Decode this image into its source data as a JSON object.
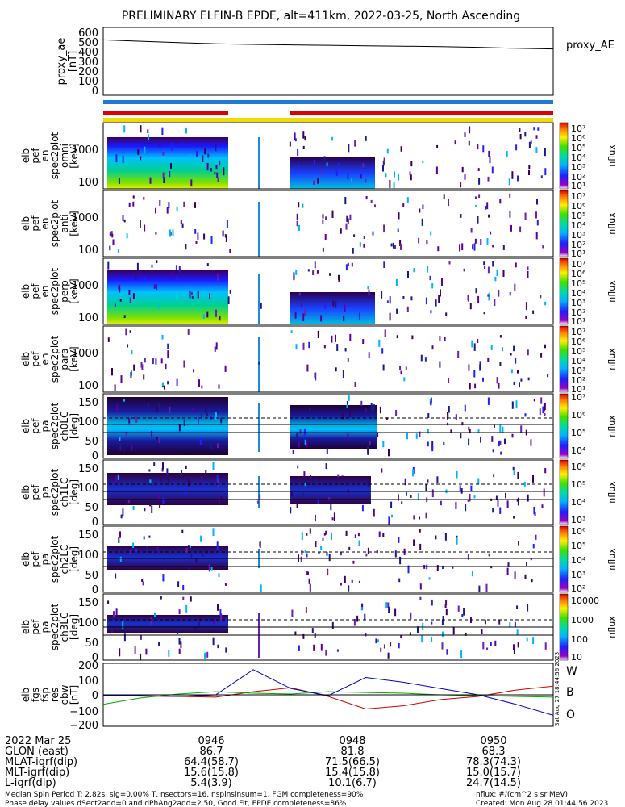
{
  "title": "PRELIMINARY ELFIN-B EPDE, alt=411km, 2022-03-25, North Ascending",
  "proxy_panel": {
    "ylabel_lines": [
      "proxy_ae",
      "[nT]"
    ],
    "ticks": [
      "600",
      "500",
      "400",
      "300",
      "200",
      "100",
      "0"
    ],
    "legend": "proxy_AE"
  },
  "spectral_panels": [
    {
      "ylabel_lines": [
        "elb",
        "pef",
        "en",
        "spec2plot",
        "omni",
        "[keV]"
      ],
      "ticks": [
        "1000",
        "100"
      ],
      "cbar_ticks": [
        "10⁷",
        "10⁶",
        "10⁵",
        "10⁴",
        "10³",
        "10²",
        "10¹"
      ],
      "zlabel": "nflux"
    },
    {
      "ylabel_lines": [
        "elb",
        "pef",
        "en",
        "spec2plot",
        "anti",
        "[keV]"
      ],
      "ticks": [
        "1000",
        "100"
      ],
      "cbar_ticks": [
        "10⁷",
        "10⁶",
        "10⁵",
        "10⁴",
        "10³",
        "10²",
        "10¹"
      ],
      "zlabel": "nflux"
    },
    {
      "ylabel_lines": [
        "elb",
        "pef",
        "en",
        "spec2plot",
        "perp",
        "[keV]"
      ],
      "ticks": [
        "1000",
        "100"
      ],
      "cbar_ticks": [
        "10⁷",
        "10⁶",
        "10⁵",
        "10⁴",
        "10³",
        "10²",
        "10¹"
      ],
      "zlabel": "nflux"
    },
    {
      "ylabel_lines": [
        "elb",
        "pef",
        "en",
        "spec2plot",
        "para",
        "[keV]"
      ],
      "ticks": [
        "1000",
        "100"
      ],
      "cbar_ticks": [
        "10⁷",
        "10⁶",
        "10⁵",
        "10⁴",
        "10³",
        "10²",
        "10¹"
      ],
      "zlabel": "nflux"
    }
  ],
  "pitch_panels": [
    {
      "ylabel_lines": [
        "elb",
        "pef",
        "pa",
        "spec2plot",
        "ch0LC",
        "[deg]"
      ],
      "ticks": [
        "150",
        "100",
        "50",
        "0"
      ],
      "cbar_ticks": [
        "10⁷",
        "10⁶",
        "10⁵",
        "10⁴"
      ],
      "zlabel": "nflux"
    },
    {
      "ylabel_lines": [
        "elb",
        "pef",
        "pa",
        "spec2plot",
        "ch1LC",
        "[deg]"
      ],
      "ticks": [
        "150",
        "100",
        "50",
        "0"
      ],
      "cbar_ticks": [
        "10⁶",
        "10⁵",
        "10⁴",
        "10³"
      ],
      "zlabel": "nflux"
    },
    {
      "ylabel_lines": [
        "elb",
        "pef",
        "pa",
        "spec2plot",
        "ch2LC",
        "[deg]"
      ],
      "ticks": [
        "150",
        "100",
        "50",
        "0"
      ],
      "cbar_ticks": [
        "10⁶",
        "10⁵",
        "10⁴",
        "10³",
        "10²"
      ],
      "zlabel": "nflux"
    },
    {
      "ylabel_lines": [
        "elb",
        "pef",
        "pa",
        "spec2plot",
        "ch3LC",
        "[deg]"
      ],
      "ticks": [
        "150",
        "100",
        "50",
        "0"
      ],
      "cbar_ticks": [
        "10000",
        "1000",
        "100",
        "10"
      ],
      "zlabel": "nflux"
    }
  ],
  "mag_panel": {
    "ylabel_lines": [
      "elb",
      "fgs",
      "fsp",
      "res",
      "obw",
      "[nT]"
    ],
    "ticks": [
      "200",
      "100",
      "0",
      "−100",
      "−200"
    ],
    "legend": [
      {
        "label": "W",
        "color": "#cc0000"
      },
      {
        "label": "B",
        "color": "#00aa00"
      },
      {
        "label": "O",
        "color": "#0000cc"
      }
    ],
    "side_label": "Sat Aug 27 18:44:56 2023"
  },
  "colors": {
    "red_bar": "#dd0000",
    "blue_bar": "#1e7ad6",
    "yellow_bar": "#f2dc00"
  },
  "footer": {
    "rows": [
      {
        "label": "2022 Mar 25",
        "values": [
          "0946",
          "0948",
          "0950"
        ]
      },
      {
        "label": "GLON (east)",
        "values": [
          "86.7",
          "81.8",
          "68.3"
        ]
      },
      {
        "label": "MLAT-igrf(dip)",
        "values": [
          "64.4(58.7)",
          "71.5(66.5)",
          "78.3(74.3)"
        ]
      },
      {
        "label": "MLT-igrf(dip)",
        "values": [
          "15.6(15.8)",
          "15.4(15.8)",
          "15.0(15.7)"
        ]
      },
      {
        "label": "L-igrf(dip)",
        "values": [
          "5.4(3.9)",
          "10.1(6.7)",
          "24.7(14.5)"
        ]
      }
    ],
    "note1": "Median Spin Period T: 2.82s, sig=0.00% T, nsectors=16, nspinsinsum=1, FGM completeness=90%",
    "note2": "Phase delay values dSect2add=0 and dPhAng2add=2.50, Good Fit, EPDE completeness=86%",
    "units": "nflux: #/(cm^2 s sr MeV)",
    "created": "Created: Mon Aug 28 01:44:56 2023"
  },
  "chart_data": {
    "type": "line",
    "x": [
      "09:45:00",
      "09:45:30",
      "09:46:00",
      "09:46:30",
      "09:47:00",
      "09:47:30",
      "09:48:00",
      "09:48:30",
      "09:49:00",
      "09:49:30",
      "09:50:00",
      "09:50:30",
      "09:51:00"
    ],
    "xtick_labels": [
      "0946",
      "0948",
      "0950"
    ],
    "proxy_ae": {
      "ylim": [
        0,
        600
      ],
      "values": [
        490,
        478,
        466,
        456,
        450,
        446,
        442,
        438,
        434,
        430,
        424,
        416,
        410
      ]
    },
    "mag_series": [
      {
        "name": "W",
        "color": "#cc0000",
        "values": [
          -5,
          -8,
          -10,
          -15,
          20,
          45,
          -10,
          -90,
          -70,
          -30,
          -10,
          30,
          55
        ]
      },
      {
        "name": "B",
        "color": "#00aa00",
        "values": [
          -60,
          -20,
          5,
          20,
          10,
          5,
          20,
          15,
          10,
          0,
          -5,
          -10,
          -15
        ]
      },
      {
        "name": "O",
        "color": "#0000cc",
        "values": [
          -5,
          -5,
          -10,
          0,
          160,
          40,
          -5,
          110,
          80,
          40,
          0,
          -60,
          -130
        ]
      },
      {
        "name": "zero",
        "color": "#000000",
        "values": [
          0,
          0,
          0,
          0,
          0,
          0,
          0,
          0,
          0,
          0,
          0,
          0,
          0
        ]
      }
    ],
    "mag_ylim": [
      -200,
      200
    ],
    "spectrogram_units": "nflux"
  }
}
